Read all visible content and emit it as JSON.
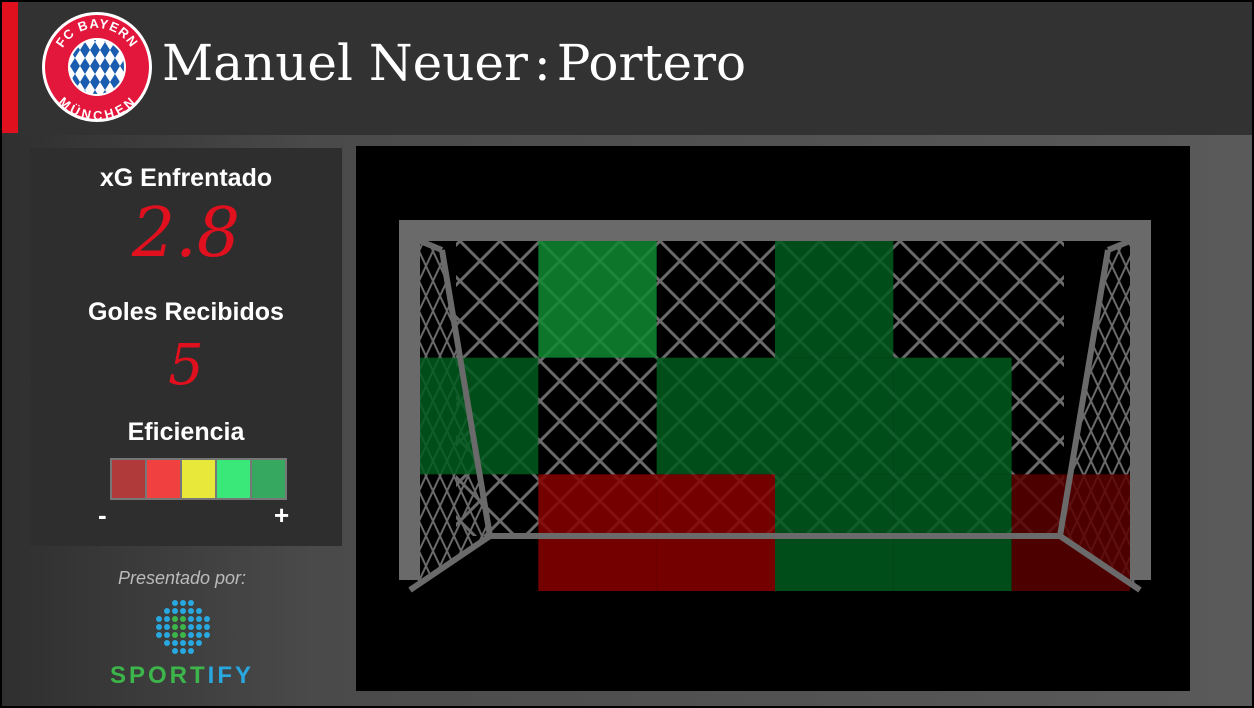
{
  "header": {
    "player_name": "Manuel Neuer",
    "separator": ":",
    "position": "Portero",
    "club_logo_text_top": "FC BAYERN",
    "club_logo_text_bottom": "MÜNCHEN",
    "accent_color": "#e0101e"
  },
  "stats": {
    "xg_label": "xG Enfrentado",
    "xg_value": "2.8",
    "goals_label": "Goles Recibidos",
    "goals_value": "5",
    "efficiency_label": "Eficiencia",
    "scale_colors": [
      "#b03a3a",
      "#f04040",
      "#e8e83a",
      "#3ae87a",
      "#36a860"
    ],
    "scale_min": "-",
    "scale_max": "+"
  },
  "sponsor": {
    "presented_by": "Presentado por:",
    "brand_part1": "SPORT",
    "brand_part2": "IFY"
  },
  "chart_data": {
    "type": "heatmap",
    "rows": 3,
    "cols": 6,
    "levels": {
      "none": "#000000",
      "good": "#0f8a30",
      "ok": "#005a1e",
      "bad": "#8a0000",
      "very_bad": "#5a0000"
    },
    "zones": [
      [
        "none",
        "good",
        "none",
        "ok",
        "none",
        "none"
      ],
      [
        "ok",
        "none",
        "ok",
        "ok",
        "ok",
        "none"
      ],
      [
        "none",
        "bad",
        "bad",
        "ok",
        "ok",
        "very_bad"
      ]
    ]
  }
}
